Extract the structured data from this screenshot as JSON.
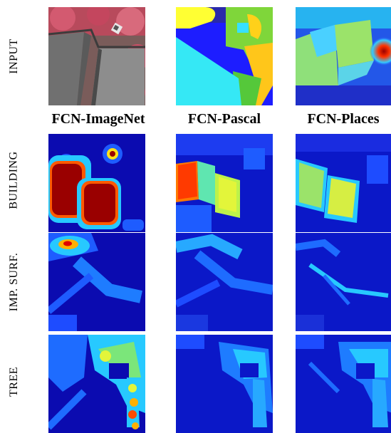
{
  "row_labels": [
    "INPUT",
    "BUILDING",
    "IMP. SURF.",
    "TREE"
  ],
  "column_headers": [
    "FCN-ImageNet",
    "FCN-Pascal",
    "FCN-Places"
  ],
  "colormap": {
    "low": "#0b0b9a",
    "mid": "#27c9ff",
    "high_mid": "#f2f23b",
    "high": "#9a0000"
  }
}
